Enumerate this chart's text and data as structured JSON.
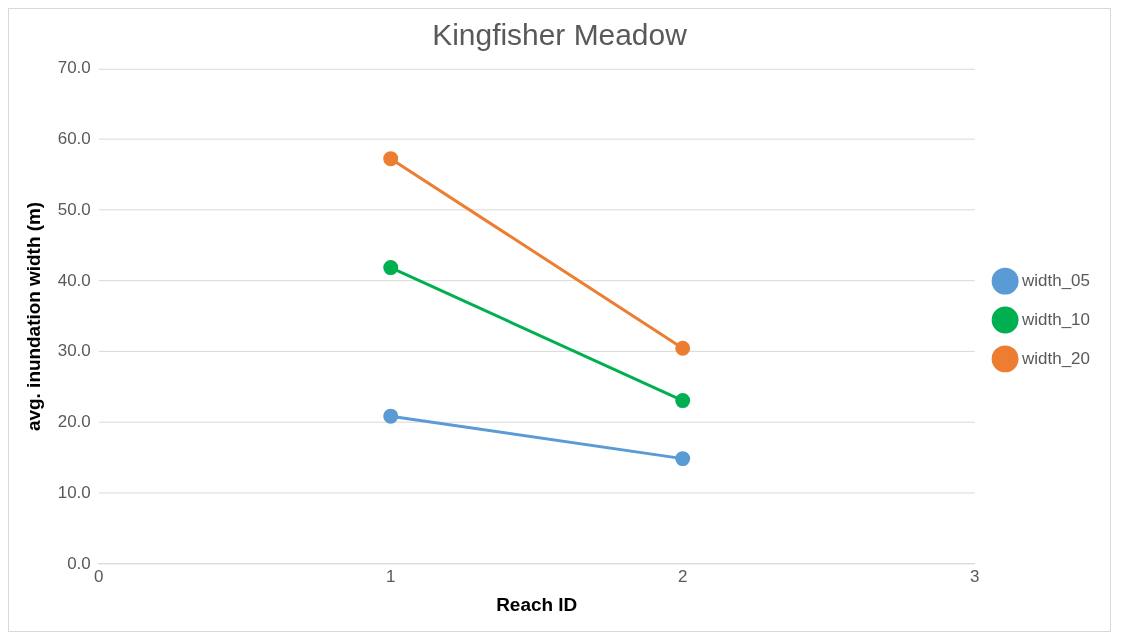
{
  "chart_data": {
    "type": "line",
    "title": "Kingfisher Meadow",
    "xlabel": "Reach ID",
    "ylabel": "avg. inundation width (m)",
    "x": [
      1,
      2
    ],
    "series": [
      {
        "name": "width_05",
        "color": "#5b9bd5",
        "values": [
          20.9,
          14.9
        ]
      },
      {
        "name": "width_10",
        "color": "#00b050",
        "values": [
          41.9,
          23.1
        ]
      },
      {
        "name": "width_20",
        "color": "#ed7d31",
        "values": [
          57.3,
          30.5
        ]
      }
    ],
    "xlim": [
      0,
      3
    ],
    "xticks": [
      0,
      1,
      2,
      3
    ],
    "ylim": [
      0,
      70
    ],
    "yticks": [
      {
        "value": 0,
        "label": "0.0"
      },
      {
        "value": 10,
        "label": "10.0"
      },
      {
        "value": 20,
        "label": "20.0"
      },
      {
        "value": 30,
        "label": "30.0"
      },
      {
        "value": 40,
        "label": "40.0"
      },
      {
        "value": 50,
        "label": "50.0"
      },
      {
        "value": 60,
        "label": "60.0"
      },
      {
        "value": 70,
        "label": "70.0"
      }
    ],
    "grid": "y",
    "legend": "right",
    "marker": "circle",
    "line_style": "solid"
  }
}
